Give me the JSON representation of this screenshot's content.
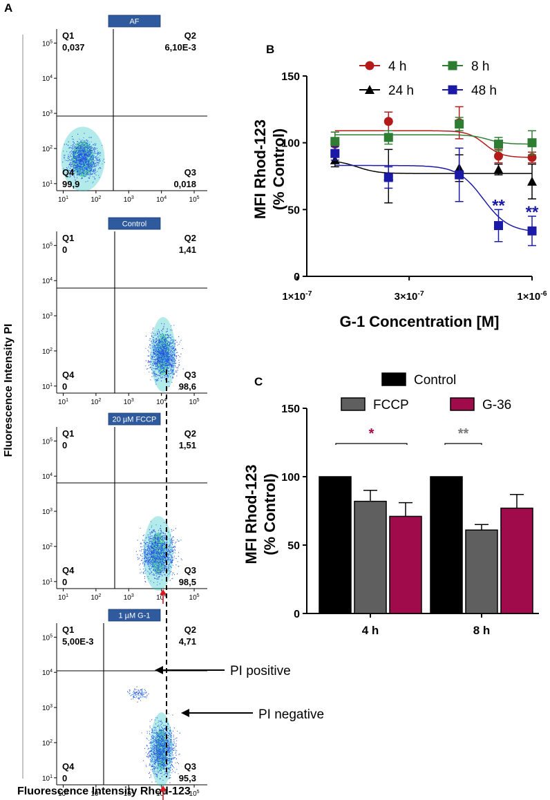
{
  "panel_labels": {
    "a": "A",
    "b": "B",
    "c": "C"
  },
  "panel_a": {
    "y_axis_title": "Fluorescence Intensity PI",
    "x_axis_title": "Fluorescence Intensity Rhod-123",
    "tick_base": "10",
    "tick_exponents": [
      "1",
      "2",
      "3",
      "4",
      "5"
    ],
    "plots": [
      {
        "tag": "AF",
        "q1_label": "Q1",
        "q1": "0,037",
        "q2_label": "Q2",
        "q2": "6,10E-3",
        "q3_label": "Q3",
        "q3": "0,018",
        "q4_label": "Q4",
        "q4": "99,9"
      },
      {
        "tag": "Control",
        "q1_label": "Q1",
        "q1": "0",
        "q2_label": "Q2",
        "q2": "1,41",
        "q3_label": "Q3",
        "q3": "98,6",
        "q4_label": "Q4",
        "q4": "0"
      },
      {
        "tag": "20 µM FCCP",
        "q1_label": "Q1",
        "q1": "0",
        "q2_label": "Q2",
        "q2": "1,51",
        "q3_label": "Q3",
        "q3": "98,5",
        "q4_label": "Q4",
        "q4": "0"
      },
      {
        "tag": "1 µM G-1",
        "q1_label": "Q1",
        "q1": "5,00E-3",
        "q2_label": "Q2",
        "q2": "4,71",
        "q3_label": "Q3",
        "q3": "95,3",
        "q4_label": "Q4",
        "q4": "0"
      }
    ],
    "annotations": {
      "pi_positive": "PI positive",
      "pi_negative": "PI negative"
    }
  },
  "chart_data": [
    {
      "panel": "B",
      "type": "line",
      "xscale": "log",
      "xlabel": "G-1 Concentration [M]",
      "ylabel_line1": "MFI Rhod-123",
      "ylabel_line2": "(% Control)",
      "ylim": [
        0,
        150
      ],
      "yticks": [
        "0",
        "50",
        "100",
        "150"
      ],
      "xlim": [
        1.1e-07,
        1e-06
      ],
      "xtick_values": [
        1e-07,
        3e-07,
        1e-06
      ],
      "xtick_base": [
        "1×10",
        "3×10",
        "1×10"
      ],
      "xtick_exp": [
        "-7",
        "-7",
        "-6"
      ],
      "x": [
        1.45e-07,
        2.45e-07,
        4.9e-07,
        7.2e-07,
        1e-06
      ],
      "series": [
        {
          "name": "4 h",
          "color": "#b31b1b",
          "marker": "circle",
          "values": [
            99,
            116,
            115,
            90,
            89
          ],
          "errors": [
            9,
            7,
            12,
            5,
            4
          ],
          "fit_top": 109,
          "fit_bottom": 89,
          "fit_mid": 6.3e-07,
          "fit_slope": 12
        },
        {
          "name": "8 h",
          "color": "#2e7d32",
          "marker": "square",
          "values": [
            101,
            104,
            114,
            99,
            100
          ],
          "errors": [
            7,
            5,
            5,
            5,
            9
          ],
          "fit_top": 106,
          "fit_bottom": 99,
          "fit_mid": 6.5e-07,
          "fit_slope": 12
        },
        {
          "name": "24 h",
          "color": "#000000",
          "marker": "triangle",
          "values": [
            87,
            75,
            81,
            80,
            71
          ],
          "errors": [
            5,
            20,
            10,
            4,
            13
          ],
          "fit_top": 87,
          "fit_bottom": 77,
          "fit_mid": 1.8e-07,
          "fit_slope": 10
        },
        {
          "name": "48 h",
          "color": "#1a1aa6",
          "marker": "square",
          "values": [
            92,
            74,
            76,
            38,
            34
          ],
          "errors": [
            5,
            8,
            20,
            12,
            11
          ],
          "fit_top": 83,
          "fit_bottom": 33,
          "fit_mid": 6.2e-07,
          "fit_slope": 8
        }
      ],
      "significance": [
        {
          "label": "**",
          "x": 7.2e-07,
          "y": 52
        },
        {
          "label": "**",
          "x": 1e-06,
          "y": 47
        }
      ],
      "significance_color": "#1a1aa6"
    },
    {
      "panel": "C",
      "type": "bar",
      "categories": [
        "4 h",
        "8 h"
      ],
      "ylabel_line1": "MFI Rhod-123",
      "ylabel_line2": "(% Control)",
      "ylim": [
        0,
        150
      ],
      "yticks": [
        "0",
        "50",
        "100",
        "150"
      ],
      "series": [
        {
          "name": "Control",
          "color": "#000000",
          "values": [
            100,
            100
          ],
          "errors": [
            0,
            0
          ]
        },
        {
          "name": "FCCP",
          "color": "#5f5f5f",
          "values": [
            82,
            61
          ],
          "errors": [
            8,
            4
          ]
        },
        {
          "name": "G-36",
          "color": "#a00b4c",
          "values": [
            71,
            77
          ],
          "errors": [
            10,
            10
          ]
        }
      ],
      "significance": [
        {
          "label": "*",
          "group": 0,
          "color": "#a00b4c"
        },
        {
          "label": "**",
          "group": 1,
          "color": "#7a7a7a"
        }
      ]
    }
  ]
}
